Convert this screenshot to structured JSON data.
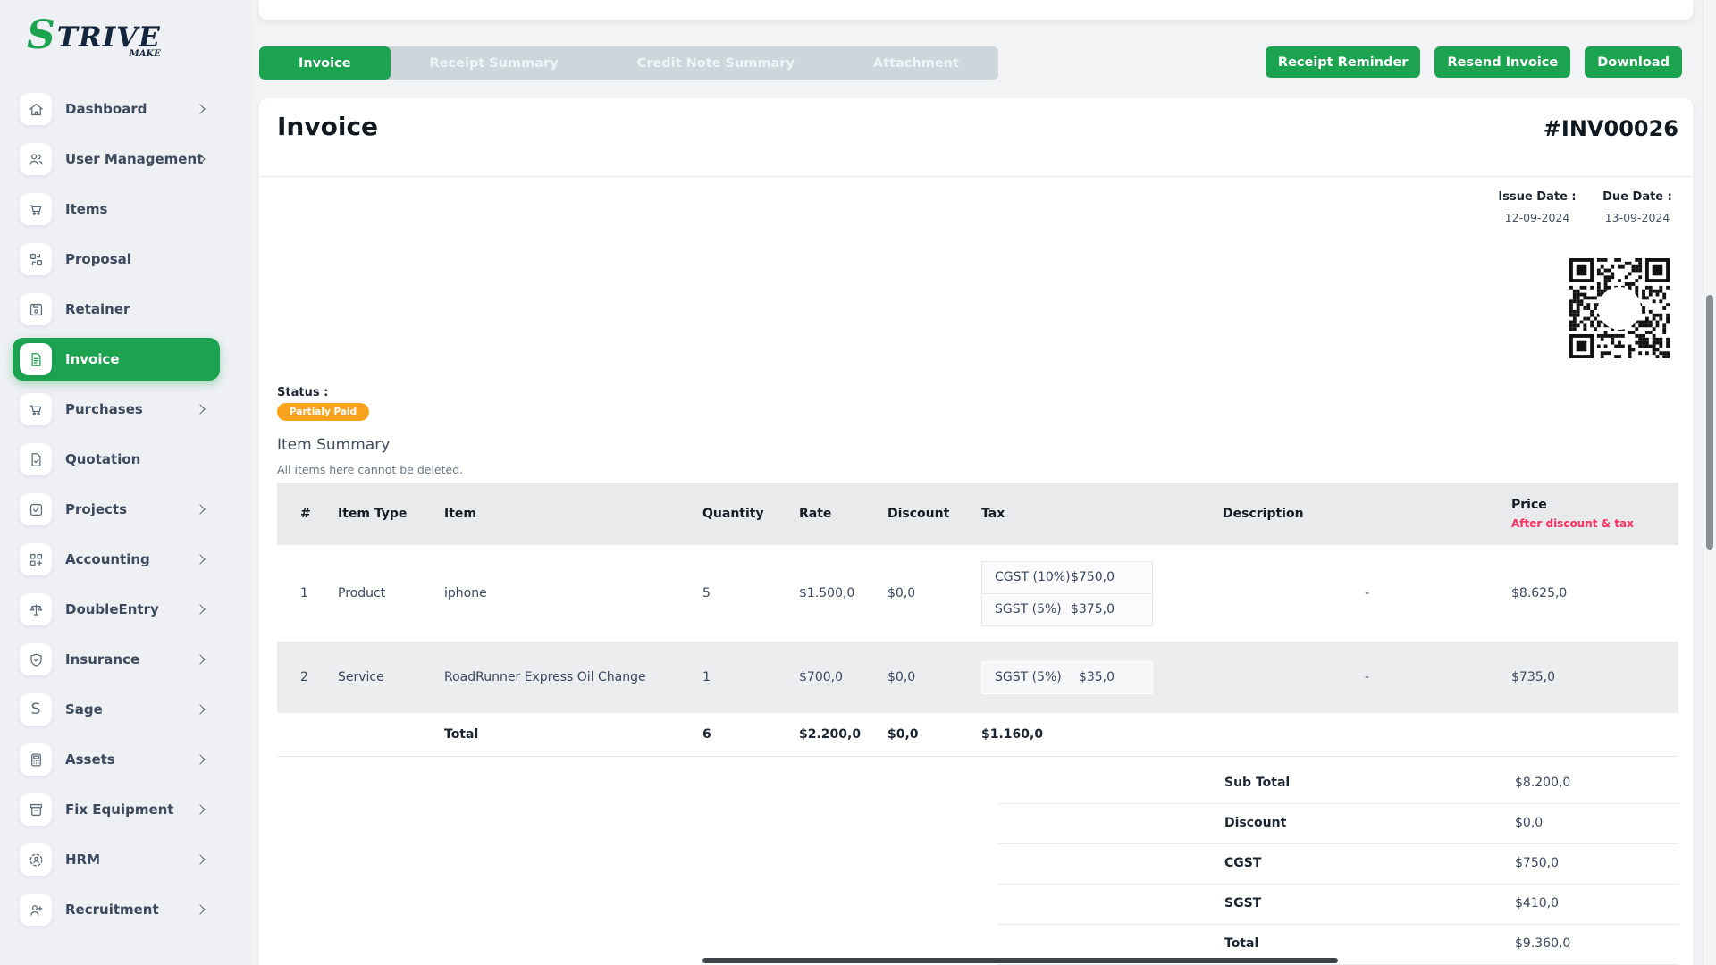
{
  "brand": {
    "s": "S",
    "rest": "TRIVE",
    "sub": "MAKE"
  },
  "colors": {
    "accent_green": "#1ca350",
    "badge_orange": "#f9a21b",
    "price_note_pink": "#fb2d5d",
    "sidebar_bg": "#eef0f4",
    "row_stripe": "#ecedef"
  },
  "sidebar": {
    "items": [
      {
        "label": "Dashboard",
        "icon": "home-icon",
        "chevron": true
      },
      {
        "label": "User Management",
        "icon": "users-icon",
        "chevron": true
      },
      {
        "label": "Items",
        "icon": "cart-icon",
        "chevron": false
      },
      {
        "label": "Proposal",
        "icon": "proposal-icon",
        "chevron": false
      },
      {
        "label": "Retainer",
        "icon": "save-icon",
        "chevron": false
      },
      {
        "label": "Invoice",
        "icon": "invoice-file-icon",
        "chevron": false,
        "active": true
      },
      {
        "label": "Purchases",
        "icon": "cart-icon",
        "chevron": true
      },
      {
        "label": "Quotation",
        "icon": "quote-file-icon",
        "chevron": false
      },
      {
        "label": "Projects",
        "icon": "project-check-icon",
        "chevron": true
      },
      {
        "label": "Accounting",
        "icon": "accounting-grid-icon",
        "chevron": true
      },
      {
        "label": "DoubleEntry",
        "icon": "scales-icon",
        "chevron": true
      },
      {
        "label": "Insurance",
        "icon": "shield-check-icon",
        "chevron": true
      },
      {
        "label": "Sage",
        "icon": "sage-s-icon",
        "chevron": true
      },
      {
        "label": "Assets",
        "icon": "calculator-icon",
        "chevron": true
      },
      {
        "label": "Fix Equipment",
        "icon": "equipment-box-icon",
        "chevron": true
      },
      {
        "label": "HRM",
        "icon": "hrm-person-icon",
        "chevron": true
      },
      {
        "label": "Recruitment",
        "icon": "person-plus-icon",
        "chevron": true
      }
    ]
  },
  "tabs": [
    {
      "label": "Invoice",
      "active": true
    },
    {
      "label": "Receipt Summary",
      "active": false
    },
    {
      "label": "Credit Note Summary",
      "active": false
    },
    {
      "label": "Attachment",
      "active": false
    }
  ],
  "actions": {
    "receipt_reminder": "Receipt Reminder",
    "resend_invoice": "Resend Invoice",
    "download": "Download"
  },
  "invoice": {
    "title": "Invoice",
    "number": "#INV00026",
    "issue_date_label": "Issue Date :",
    "issue_date": "12-09-2024",
    "due_date_label": "Due Date :",
    "due_date": "13-09-2024",
    "qr_icon": "qr-code",
    "status_label": "Status :",
    "status": "Partialy Paid",
    "section_title": "Item Summary",
    "section_note": "All items here cannot be deleted.",
    "table": {
      "headers": [
        "#",
        "Item Type",
        "Item",
        "Quantity",
        "Rate",
        "Discount",
        "Tax",
        "Description",
        "Price"
      ],
      "price_subheader": "After discount & tax",
      "rows": [
        {
          "num": "1",
          "type": "Product",
          "item": "iphone",
          "qty": "5",
          "rate": "$1.500,0",
          "discount": "$0,0",
          "taxes": [
            {
              "name": "CGST (10%)",
              "amount": "$750,0"
            },
            {
              "name": "SGST (5%)",
              "amount": "$375,0"
            }
          ],
          "description": "-",
          "price": "$8.625,0"
        },
        {
          "num": "2",
          "type": "Service",
          "item": "RoadRunner Express Oil Change",
          "qty": "1",
          "rate": "$700,0",
          "discount": "$0,0",
          "taxes": [
            {
              "name": "SGST (5%)",
              "amount": "$35,0"
            }
          ],
          "description": "-",
          "price": "$735,0"
        }
      ],
      "total_row": {
        "label": "Total",
        "qty": "6",
        "rate": "$2.200,0",
        "discount": "$0,0",
        "tax": "$1.160,0"
      }
    },
    "summary": [
      {
        "label": "Sub Total",
        "value": "$8.200,0"
      },
      {
        "label": "Discount",
        "value": "$0,0"
      },
      {
        "label": "CGST",
        "value": "$750,0"
      },
      {
        "label": "SGST",
        "value": "$410,0"
      },
      {
        "label": "Total",
        "value": "$9.360,0"
      }
    ]
  }
}
